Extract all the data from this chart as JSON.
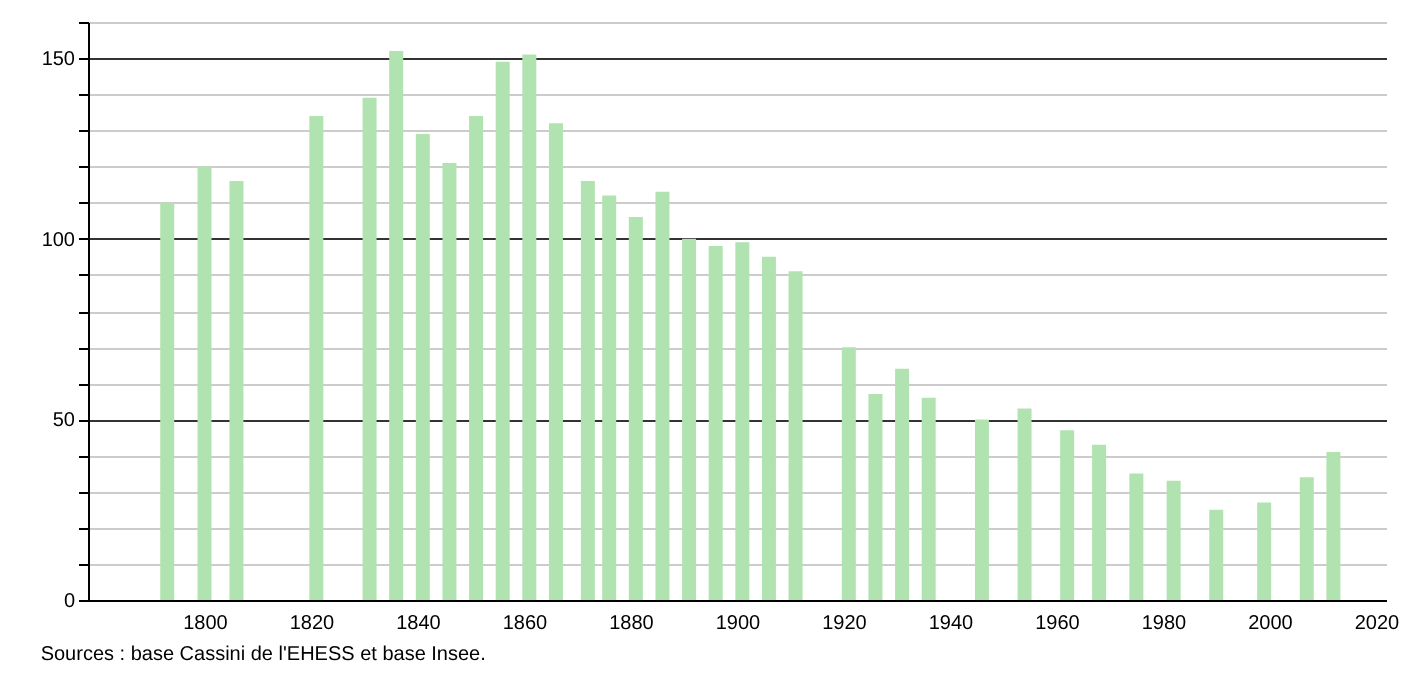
{
  "chart_data": {
    "type": "bar",
    "annotations": [
      "Sources : base Cassini de l'EHESS et base Insee."
    ],
    "x": [
      1793,
      1800,
      1806,
      1821,
      1831,
      1836,
      1841,
      1846,
      1851,
      1856,
      1861,
      1866,
      1872,
      1876,
      1881,
      1886,
      1891,
      1896,
      1901,
      1906,
      1911,
      1921,
      1926,
      1931,
      1936,
      1946,
      1954,
      1962,
      1968,
      1975,
      1982,
      1990,
      1999,
      2007,
      2012
    ],
    "values": [
      110,
      120,
      116,
      134,
      139,
      152,
      129,
      121,
      134,
      149,
      151,
      132,
      116,
      112,
      106,
      113,
      100,
      98,
      99,
      95,
      91,
      70,
      57,
      64,
      56,
      50,
      53,
      47,
      43,
      35,
      33,
      25,
      27,
      34,
      41
    ],
    "color": "#b1e3b1",
    "xlim": [
      1780,
      2020
    ],
    "xticks": [
      1800,
      1820,
      1840,
      1860,
      1880,
      1900,
      1920,
      1940,
      1960,
      1980,
      2000,
      2020
    ],
    "ylim": [
      0,
      160
    ],
    "yticks": [
      0,
      {
        "value": 10,
        "label": null
      },
      {
        "value": 20,
        "label": null
      },
      {
        "value": 30,
        "label": null
      },
      {
        "value": 40,
        "label": null
      },
      50,
      {
        "value": 60,
        "label": null
      },
      {
        "value": 70,
        "label": null
      },
      {
        "value": 80,
        "label": null
      },
      {
        "value": 90,
        "label": null
      },
      100,
      {
        "value": 110,
        "label": null
      },
      {
        "value": 120,
        "label": null
      },
      {
        "value": 130,
        "label": null
      },
      {
        "value": 140,
        "label": null
      },
      150,
      {
        "value": 160,
        "label": null
      }
    ],
    "grid": "y"
  }
}
